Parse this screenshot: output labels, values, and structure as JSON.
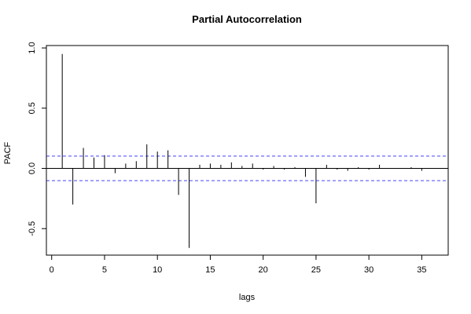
{
  "chart_data": {
    "type": "bar",
    "subtype": "pacf-spikes",
    "title": "Partial Autocorrelation",
    "xlabel": "lags",
    "ylabel": "PACF",
    "xlim": [
      -0.5,
      37.5
    ],
    "ylim": [
      -0.72,
      1.02
    ],
    "x_ticks": [
      0,
      5,
      10,
      15,
      20,
      25,
      30,
      35
    ],
    "x_tick_labels": [
      "0",
      "5",
      "10",
      "15",
      "20",
      "25",
      "30",
      "35"
    ],
    "y_ticks": [
      -0.5,
      0.0,
      0.5,
      1.0
    ],
    "y_tick_labels": [
      "-0.5",
      "0.0",
      "0.5",
      "1.0"
    ],
    "confidence_band": 0.102,
    "confidence_color": "#4444ff",
    "spike_color": "#000000",
    "grid": false,
    "legend": "none",
    "lags": [
      1,
      2,
      3,
      4,
      5,
      6,
      7,
      8,
      9,
      10,
      11,
      12,
      13,
      14,
      15,
      16,
      17,
      18,
      19,
      20,
      21,
      22,
      23,
      24,
      25,
      26,
      27,
      28,
      29,
      30,
      31,
      32,
      33,
      34,
      35,
      36
    ],
    "values": [
      0.95,
      -0.3,
      0.17,
      0.09,
      0.11,
      -0.04,
      0.04,
      0.06,
      0.2,
      0.14,
      0.15,
      -0.22,
      -0.66,
      0.03,
      0.04,
      0.03,
      0.05,
      0.02,
      0.04,
      -0.01,
      0.02,
      -0.01,
      0.01,
      -0.07,
      -0.29,
      0.03,
      -0.01,
      -0.02,
      0.01,
      -0.01,
      0.03,
      0.0,
      0.0,
      0.01,
      -0.02,
      0.0
    ]
  }
}
